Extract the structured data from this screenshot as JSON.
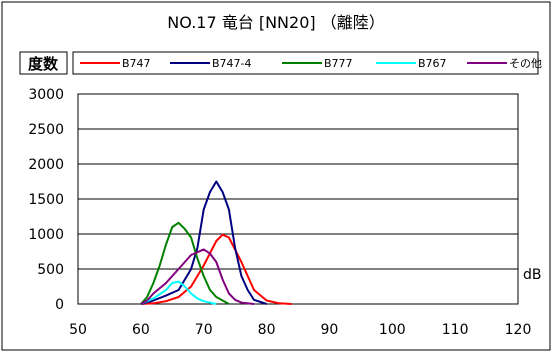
{
  "chart_data": {
    "type": "line",
    "title": "NO.17 竜台 [NN20] （離陸）",
    "ylabel": "度数",
    "xlabel": "dB",
    "xlim": [
      50,
      120
    ],
    "ylim": [
      0,
      3000
    ],
    "x_ticks": [
      "50",
      "60",
      "70",
      "80",
      "90",
      "100",
      "110",
      "120"
    ],
    "y_ticks": [
      "0",
      "500",
      "1000",
      "1500",
      "2000",
      "2500",
      "3000"
    ],
    "grid": "horizontal",
    "legend_position": "top",
    "series": [
      {
        "name": "B747",
        "color": "#ff0000",
        "points": [
          [
            60,
            0
          ],
          [
            62,
            10
          ],
          [
            64,
            40
          ],
          [
            66,
            100
          ],
          [
            68,
            250
          ],
          [
            70,
            550
          ],
          [
            72,
            900
          ],
          [
            73,
            990
          ],
          [
            74,
            950
          ],
          [
            76,
            600
          ],
          [
            78,
            200
          ],
          [
            80,
            50
          ],
          [
            82,
            10
          ],
          [
            84,
            0
          ]
        ]
      },
      {
        "name": "B747-4",
        "color": "#000080",
        "points": [
          [
            60,
            0
          ],
          [
            62,
            50
          ],
          [
            64,
            120
          ],
          [
            66,
            200
          ],
          [
            68,
            500
          ],
          [
            69,
            800
          ],
          [
            70,
            1350
          ],
          [
            71,
            1600
          ],
          [
            72,
            1750
          ],
          [
            73,
            1600
          ],
          [
            74,
            1350
          ],
          [
            75,
            800
          ],
          [
            76,
            400
          ],
          [
            77,
            200
          ],
          [
            78,
            60
          ],
          [
            80,
            0
          ]
        ]
      },
      {
        "name": "B777",
        "color": "#008000",
        "points": [
          [
            60,
            0
          ],
          [
            61,
            100
          ],
          [
            62,
            300
          ],
          [
            63,
            550
          ],
          [
            64,
            850
          ],
          [
            65,
            1100
          ],
          [
            66,
            1160
          ],
          [
            67,
            1070
          ],
          [
            68,
            950
          ],
          [
            69,
            650
          ],
          [
            70,
            400
          ],
          [
            71,
            200
          ],
          [
            72,
            100
          ],
          [
            74,
            0
          ]
        ]
      },
      {
        "name": "B767",
        "color": "#00ffff",
        "points": [
          [
            60,
            0
          ],
          [
            62,
            80
          ],
          [
            64,
            200
          ],
          [
            65,
            300
          ],
          [
            66,
            320
          ],
          [
            67,
            250
          ],
          [
            68,
            150
          ],
          [
            69,
            80
          ],
          [
            70,
            40
          ],
          [
            72,
            0
          ]
        ]
      },
      {
        "name": "その他",
        "color": "#800080",
        "points": [
          [
            60,
            0
          ],
          [
            61,
            50
          ],
          [
            62,
            150
          ],
          [
            64,
            300
          ],
          [
            66,
            500
          ],
          [
            68,
            700
          ],
          [
            70,
            780
          ],
          [
            71,
            720
          ],
          [
            72,
            600
          ],
          [
            73,
            350
          ],
          [
            74,
            150
          ],
          [
            75,
            60
          ],
          [
            76,
            20
          ],
          [
            78,
            0
          ]
        ]
      }
    ]
  }
}
